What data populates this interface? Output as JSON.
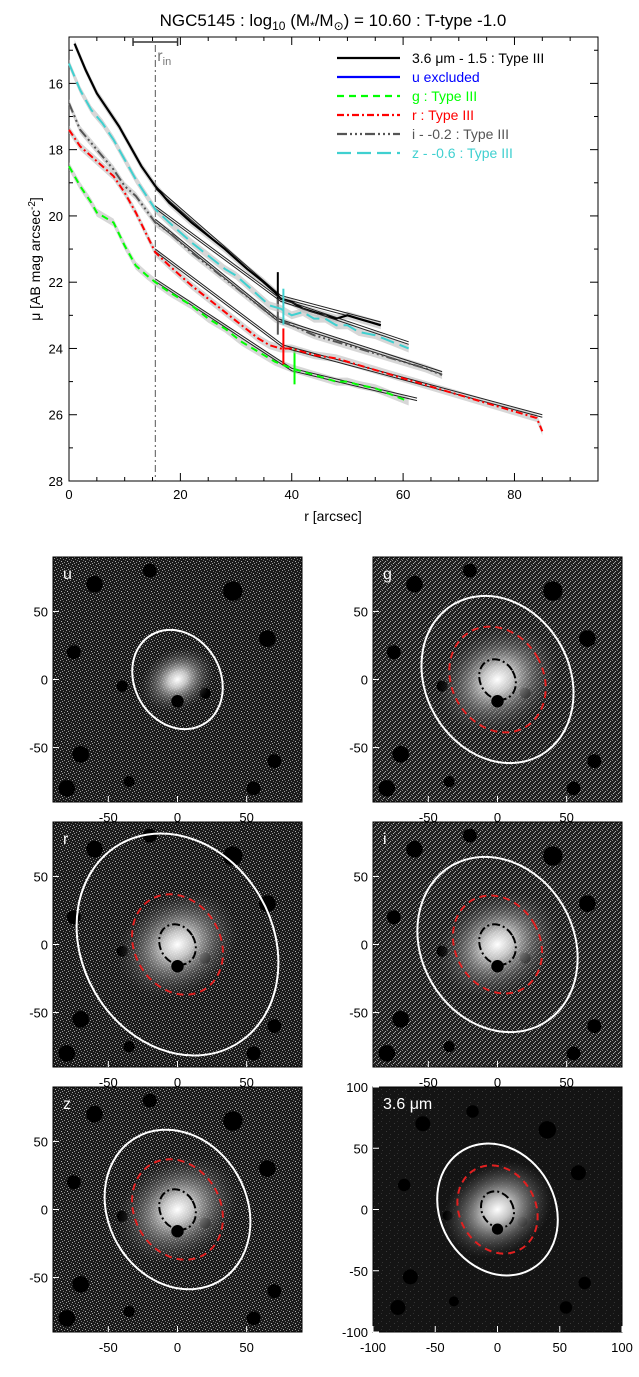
{
  "chart_data": [
    {
      "type": "line",
      "title": "NGC5145 : log",
      "title_sub": "10",
      "title_mid": " (M",
      "title_mid_sub": "*",
      "title_mid2": "/M",
      "title_mid2_sub": "⊙",
      "title_end": ") = 10.60 : T-type -1.0",
      "xlabel": "r [arcsec]",
      "ylabel": "μ [AB mag arcsec",
      "ylabel_sup": "-2",
      "ylabel_end": "]",
      "xlim": [
        0,
        95
      ],
      "ylim": [
        28,
        14.6
      ],
      "xticks": [
        0,
        20,
        40,
        60,
        80
      ],
      "yticks": [
        16,
        18,
        20,
        22,
        24,
        26,
        28
      ],
      "grid": false,
      "legend_position": "top-right",
      "rin_label": "r",
      "rin_sub": "in",
      "rin": 15.5,
      "rin_err": [
        11.5,
        19.5
      ],
      "series": [
        {
          "name": "3.6 μm - 1.5 : Type III",
          "color": "#000000",
          "dash": "",
          "x": [
            1,
            3,
            5,
            7,
            9,
            11,
            13,
            15.5,
            18,
            20,
            22,
            25,
            28,
            30,
            32,
            35,
            37,
            38,
            40,
            42,
            44,
            46,
            48,
            50,
            52,
            54,
            56
          ],
          "y": [
            14.8,
            15.6,
            16.3,
            16.8,
            17.3,
            17.9,
            18.5,
            19.1,
            19.6,
            19.9,
            20.2,
            20.6,
            21.0,
            21.3,
            21.6,
            22.0,
            22.3,
            22.5,
            22.6,
            22.8,
            22.9,
            23.0,
            23.1,
            23.0,
            23.1,
            23.2,
            23.3
          ],
          "fit_x": [
            15.5,
            38,
            56
          ],
          "fit_y": [
            19.1,
            22.4,
            23.2
          ],
          "break_r": 37.5
        },
        {
          "name": "u excluded",
          "color": "#0000ff",
          "dash": "",
          "x": [],
          "y": []
        },
        {
          "name": "g : Type III",
          "color": "#00ff00",
          "dash": "7,5",
          "x": [
            0,
            2,
            4,
            5,
            6,
            8,
            10,
            12,
            14,
            15.5,
            18,
            20,
            22,
            25,
            28,
            31,
            34,
            37,
            40,
            42,
            44,
            46,
            48,
            50,
            52,
            55,
            58,
            61
          ],
          "y": [
            18.5,
            19.1,
            19.6,
            19.9,
            20.0,
            20.2,
            20.9,
            21.5,
            21.8,
            22.0,
            22.3,
            22.5,
            22.7,
            23.1,
            23.4,
            23.8,
            24.1,
            24.4,
            24.6,
            24.7,
            24.8,
            24.9,
            25.0,
            25.0,
            25.1,
            25.2,
            25.4,
            25.6
          ],
          "fit_x": [
            15.5,
            40,
            62.5
          ],
          "fit_y": [
            21.9,
            24.6,
            25.5
          ],
          "break_r": 40.5
        },
        {
          "name": "r : Type III",
          "color": "#ff0000",
          "dash": "7,3,2,3",
          "x": [
            0,
            2,
            4,
            6,
            8,
            10,
            12,
            15.5,
            18,
            20,
            22,
            25,
            28,
            31,
            34,
            36,
            38,
            40,
            44,
            48,
            52,
            56,
            60,
            64,
            68,
            72,
            76,
            80,
            84,
            85
          ],
          "y": [
            17.4,
            17.9,
            18.2,
            18.5,
            18.8,
            19.3,
            19.9,
            21.1,
            21.5,
            21.8,
            22.1,
            22.5,
            22.9,
            23.3,
            23.7,
            23.9,
            24.0,
            24.0,
            24.2,
            24.3,
            24.5,
            24.7,
            24.9,
            25.1,
            25.3,
            25.5,
            25.7,
            25.9,
            26.1,
            26.5
          ],
          "fit_x": [
            15.5,
            38.5,
            85
          ],
          "fit_y": [
            21.0,
            23.9,
            26.0
          ],
          "break_r": 38.5
        },
        {
          "name": "i - -0.2 : Type III",
          "color": "#555555",
          "dash": "10,3,2,3,2,3,2,3",
          "x": [
            0,
            2,
            4,
            6,
            8,
            10,
            12,
            15.5,
            18,
            20,
            22,
            25,
            28,
            31,
            34,
            37,
            40,
            44,
            48,
            52,
            56,
            60,
            64,
            67
          ],
          "y": [
            16.6,
            17.4,
            17.8,
            18.2,
            18.6,
            19.1,
            19.4,
            20.2,
            20.5,
            20.8,
            21.1,
            21.5,
            21.9,
            22.3,
            22.7,
            23.1,
            23.3,
            23.6,
            23.8,
            24.0,
            24.2,
            24.4,
            24.6,
            24.8
          ],
          "fit_x": [
            15.5,
            37.5,
            67
          ],
          "fit_y": [
            20.1,
            23.1,
            24.7
          ],
          "break_r": 37.5
        },
        {
          "name": "z - -0.6 : Type III",
          "color": "#40d0d0",
          "dash": "14,6",
          "x": [
            0,
            2,
            4,
            6,
            8,
            10,
            12,
            15.5,
            18,
            20,
            22,
            25,
            28,
            30,
            32,
            34,
            36,
            38,
            40,
            42,
            44,
            46,
            48,
            50,
            52,
            55,
            58,
            61
          ],
          "y": [
            15.4,
            16.2,
            16.8,
            17.2,
            17.7,
            18.3,
            18.9,
            19.8,
            20.2,
            20.5,
            20.8,
            21.2,
            21.6,
            21.8,
            22.1,
            22.4,
            22.7,
            22.8,
            23.0,
            22.9,
            23.1,
            23.1,
            23.3,
            23.3,
            23.5,
            23.6,
            23.8,
            24.0
          ],
          "fit_x": [
            15.5,
            38,
            61
          ],
          "fit_y": [
            19.7,
            22.5,
            23.8
          ],
          "break_r": 38.5
        }
      ]
    },
    {
      "type": "image-panels",
      "panels": [
        {
          "label": "u",
          "xticks": [
            -50,
            0,
            50
          ],
          "yticks": [
            50,
            0,
            -50
          ],
          "xlim": [
            -90,
            90
          ],
          "ylim": [
            -90,
            90
          ],
          "outer_ellipse": {
            "a": 38,
            "b": 31,
            "angle": -30
          },
          "show_break": false,
          "show_inner": false
        },
        {
          "label": "g",
          "xticks": [
            -50,
            0,
            50
          ],
          "yticks": [
            50,
            0,
            -50
          ],
          "xlim": [
            -90,
            90
          ],
          "ylim": [
            -90,
            90
          ],
          "outer_ellipse": {
            "a": 64,
            "b": 52,
            "angle": -30
          },
          "break_ellipse": {
            "a": 40.5,
            "b": 33
          },
          "inner_ellipse": {
            "a": 15.5,
            "b": 12.5
          },
          "show_break": true,
          "show_inner": true
        },
        {
          "label": "r",
          "xticks": [
            -50,
            0,
            50
          ],
          "yticks": [
            50,
            0,
            -50
          ],
          "xlim": [
            -90,
            90
          ],
          "ylim": [
            -90,
            90
          ],
          "outer_ellipse": {
            "a": 85,
            "b": 69,
            "angle": -30
          },
          "break_ellipse": {
            "a": 38.5,
            "b": 31
          },
          "inner_ellipse": {
            "a": 15.5,
            "b": 12.5
          },
          "show_break": true,
          "show_inner": true
        },
        {
          "label": "i",
          "xticks": [
            -50,
            0,
            50
          ],
          "yticks": [
            50,
            0,
            -50
          ],
          "xlim": [
            -90,
            90
          ],
          "ylim": [
            -90,
            90
          ],
          "outer_ellipse": {
            "a": 67,
            "b": 55,
            "angle": -30
          },
          "break_ellipse": {
            "a": 37.5,
            "b": 30.5
          },
          "inner_ellipse": {
            "a": 15.5,
            "b": 12.5
          },
          "show_break": true,
          "show_inner": true
        },
        {
          "label": "z",
          "xticks": [
            -50,
            0,
            50
          ],
          "yticks": [
            50,
            0,
            -50
          ],
          "xlim": [
            -90,
            90
          ],
          "ylim": [
            -90,
            90
          ],
          "outer_ellipse": {
            "a": 61,
            "b": 50,
            "angle": -30
          },
          "break_ellipse": {
            "a": 38.5,
            "b": 31
          },
          "inner_ellipse": {
            "a": 15.5,
            "b": 12.5
          },
          "show_break": true,
          "show_inner": true
        },
        {
          "label": "3.6 μm",
          "xticks": [
            -100,
            -50,
            0,
            50,
            100
          ],
          "yticks": [
            100,
            50,
            0,
            -50,
            -100
          ],
          "xlim": [
            -100,
            100
          ],
          "ylim": [
            -100,
            100
          ],
          "outer_ellipse": {
            "a": 56,
            "b": 46,
            "angle": -30
          },
          "break_ellipse": {
            "a": 37.5,
            "b": 30.5
          },
          "inner_ellipse": {
            "a": 15.5,
            "b": 12.5
          },
          "show_break": true,
          "show_inner": true
        }
      ]
    }
  ]
}
